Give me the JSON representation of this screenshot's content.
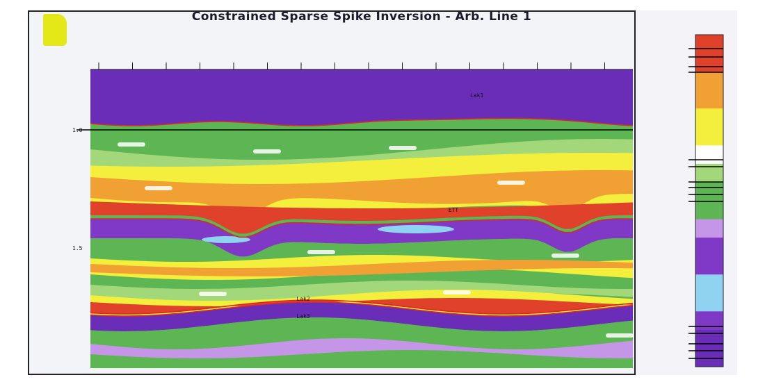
{
  "chart_data": {
    "type": "heatmap",
    "title": "Constrained Sparse Spike Inversion - Arb. Line 1",
    "ylabel": "",
    "legend": {
      "title": "",
      "placement": "right",
      "entries": []
    },
    "colors": {
      "background": "#f3f4f8",
      "deep_purple": "#6a2db8",
      "purple": "#7f39c6",
      "lavender": "#c595e8",
      "light_blue": "#8fd3f0",
      "green": "#5db653",
      "light_green": "#a2d77a",
      "white": "#ffffff",
      "yellow": "#f3ef3c",
      "orange": "#f1a033",
      "red": "#e0412b",
      "horizon": "#d42a2a",
      "time_line": "#000000"
    },
    "horizons": [
      {
        "name": "Lak1"
      },
      {
        "name": "ETT"
      },
      {
        "name": "Lak2"
      },
      {
        "name": "Lak3"
      }
    ],
    "y_ticks": [
      {
        "label": "1.0"
      },
      {
        "label": "1.5"
      }
    ]
  }
}
